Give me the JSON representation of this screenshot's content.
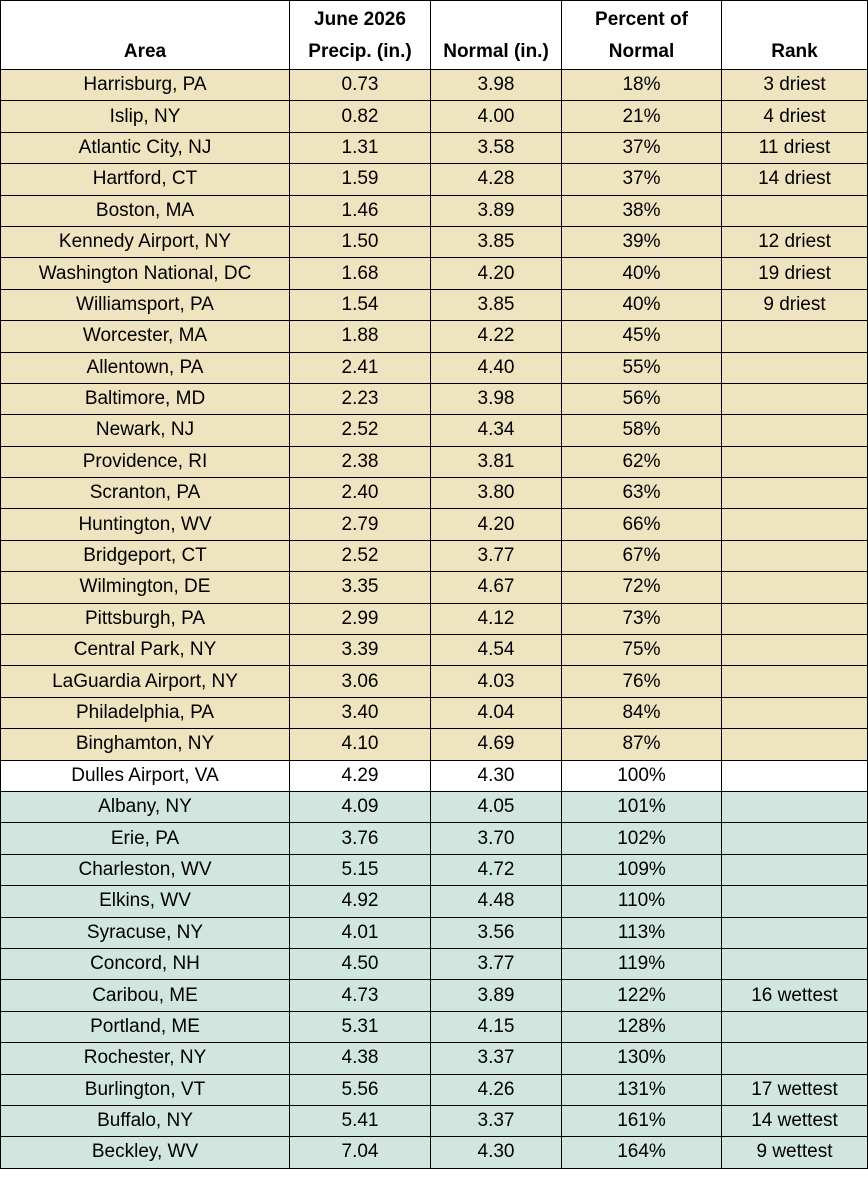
{
  "headers": {
    "area": "Area",
    "precip_line1": "June 2026",
    "precip_line2": "Precip. (in.)",
    "normal": "Normal (in.)",
    "percent_line1": "Percent of",
    "percent_line2": "Normal",
    "rank": "Rank"
  },
  "colors": {
    "dry_row": "#efe4c0",
    "normal_row": "#ffffff",
    "wet_row": "#d2e6e0"
  },
  "rows": [
    {
      "area": "Harrisburg, PA",
      "precip": "0.73",
      "normal": "3.98",
      "percent": "18%",
      "rank": "3 driest",
      "category": "dry"
    },
    {
      "area": "Islip, NY",
      "precip": "0.82",
      "normal": "4.00",
      "percent": "21%",
      "rank": "4 driest",
      "category": "dry"
    },
    {
      "area": "Atlantic City, NJ",
      "precip": "1.31",
      "normal": "3.58",
      "percent": "37%",
      "rank": "11 driest",
      "category": "dry"
    },
    {
      "area": "Hartford, CT",
      "precip": "1.59",
      "normal": "4.28",
      "percent": "37%",
      "rank": "14 driest",
      "category": "dry"
    },
    {
      "area": "Boston, MA",
      "precip": "1.46",
      "normal": "3.89",
      "percent": "38%",
      "rank": "",
      "category": "dry"
    },
    {
      "area": "Kennedy Airport, NY",
      "precip": "1.50",
      "normal": "3.85",
      "percent": "39%",
      "rank": "12 driest",
      "category": "dry"
    },
    {
      "area": "Washington National, DC",
      "precip": "1.68",
      "normal": "4.20",
      "percent": "40%",
      "rank": "19 driest",
      "category": "dry"
    },
    {
      "area": "Williamsport, PA",
      "precip": "1.54",
      "normal": "3.85",
      "percent": "40%",
      "rank": "9 driest",
      "category": "dry"
    },
    {
      "area": "Worcester, MA",
      "precip": "1.88",
      "normal": "4.22",
      "percent": "45%",
      "rank": "",
      "category": "dry"
    },
    {
      "area": "Allentown, PA",
      "precip": "2.41",
      "normal": "4.40",
      "percent": "55%",
      "rank": "",
      "category": "dry"
    },
    {
      "area": "Baltimore, MD",
      "precip": "2.23",
      "normal": "3.98",
      "percent": "56%",
      "rank": "",
      "category": "dry"
    },
    {
      "area": "Newark, NJ",
      "precip": "2.52",
      "normal": "4.34",
      "percent": "58%",
      "rank": "",
      "category": "dry"
    },
    {
      "area": "Providence, RI",
      "precip": "2.38",
      "normal": "3.81",
      "percent": "62%",
      "rank": "",
      "category": "dry"
    },
    {
      "area": "Scranton, PA",
      "precip": "2.40",
      "normal": "3.80",
      "percent": "63%",
      "rank": "",
      "category": "dry"
    },
    {
      "area": "Huntington, WV",
      "precip": "2.79",
      "normal": "4.20",
      "percent": "66%",
      "rank": "",
      "category": "dry"
    },
    {
      "area": "Bridgeport, CT",
      "precip": "2.52",
      "normal": "3.77",
      "percent": "67%",
      "rank": "",
      "category": "dry"
    },
    {
      "area": "Wilmington, DE",
      "precip": "3.35",
      "normal": "4.67",
      "percent": "72%",
      "rank": "",
      "category": "dry"
    },
    {
      "area": "Pittsburgh, PA",
      "precip": "2.99",
      "normal": "4.12",
      "percent": "73%",
      "rank": "",
      "category": "dry"
    },
    {
      "area": "Central Park, NY",
      "precip": "3.39",
      "normal": "4.54",
      "percent": "75%",
      "rank": "",
      "category": "dry"
    },
    {
      "area": "LaGuardia Airport, NY",
      "precip": "3.06",
      "normal": "4.03",
      "percent": "76%",
      "rank": "",
      "category": "dry"
    },
    {
      "area": "Philadelphia, PA",
      "precip": "3.40",
      "normal": "4.04",
      "percent": "84%",
      "rank": "",
      "category": "dry"
    },
    {
      "area": "Binghamton, NY",
      "precip": "4.10",
      "normal": "4.69",
      "percent": "87%",
      "rank": "",
      "category": "dry"
    },
    {
      "area": "Dulles Airport, VA",
      "precip": "4.29",
      "normal": "4.30",
      "percent": "100%",
      "rank": "",
      "category": "normal"
    },
    {
      "area": "Albany, NY",
      "precip": "4.09",
      "normal": "4.05",
      "percent": "101%",
      "rank": "",
      "category": "wet"
    },
    {
      "area": "Erie, PA",
      "precip": "3.76",
      "normal": "3.70",
      "percent": "102%",
      "rank": "",
      "category": "wet"
    },
    {
      "area": "Charleston, WV",
      "precip": "5.15",
      "normal": "4.72",
      "percent": "109%",
      "rank": "",
      "category": "wet"
    },
    {
      "area": "Elkins, WV",
      "precip": "4.92",
      "normal": "4.48",
      "percent": "110%",
      "rank": "",
      "category": "wet"
    },
    {
      "area": "Syracuse, NY",
      "precip": "4.01",
      "normal": "3.56",
      "percent": "113%",
      "rank": "",
      "category": "wet"
    },
    {
      "area": "Concord, NH",
      "precip": "4.50",
      "normal": "3.77",
      "percent": "119%",
      "rank": "",
      "category": "wet"
    },
    {
      "area": "Caribou, ME",
      "precip": "4.73",
      "normal": "3.89",
      "percent": "122%",
      "rank": "16 wettest",
      "category": "wet"
    },
    {
      "area": "Portland, ME",
      "precip": "5.31",
      "normal": "4.15",
      "percent": "128%",
      "rank": "",
      "category": "wet"
    },
    {
      "area": "Rochester, NY",
      "precip": "4.38",
      "normal": "3.37",
      "percent": "130%",
      "rank": "",
      "category": "wet"
    },
    {
      "area": "Burlington, VT",
      "precip": "5.56",
      "normal": "4.26",
      "percent": "131%",
      "rank": "17 wettest",
      "category": "wet"
    },
    {
      "area": "Buffalo, NY",
      "precip": "5.41",
      "normal": "3.37",
      "percent": "161%",
      "rank": "14 wettest",
      "category": "wet"
    },
    {
      "area": "Beckley, WV",
      "precip": "7.04",
      "normal": "4.30",
      "percent": "164%",
      "rank": "9 wettest",
      "category": "wet"
    }
  ]
}
